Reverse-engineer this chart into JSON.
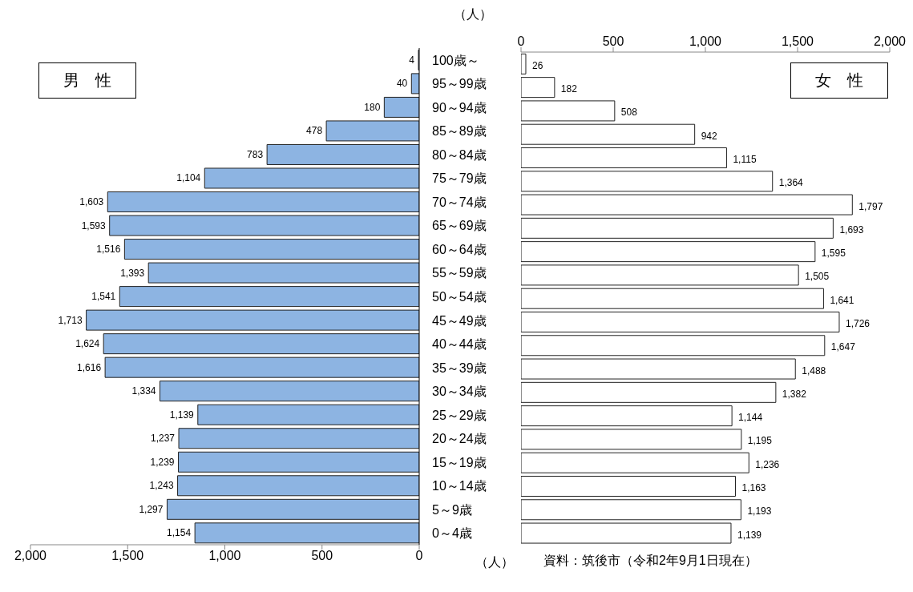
{
  "chart_data": [
    {
      "type": "bar",
      "orientation": "horizontal",
      "title": "男　性",
      "xlabel": "（人）",
      "categories": [
        "100歳～",
        "95～99歳",
        "90～94歳",
        "85～89歳",
        "80～84歳",
        "75～79歳",
        "70～74歳",
        "65～69歳",
        "60～64歳",
        "55～59歳",
        "50～54歳",
        "45～49歳",
        "40～44歳",
        "35～39歳",
        "30～34歳",
        "25～29歳",
        "20～24歳",
        "15～19歳",
        "10～14歳",
        "5～9歳",
        "0～4歳"
      ],
      "values": [
        4,
        40,
        180,
        478,
        783,
        1104,
        1603,
        1593,
        1516,
        1393,
        1541,
        1713,
        1624,
        1616,
        1334,
        1139,
        1237,
        1239,
        1243,
        1297,
        1154
      ],
      "value_labels": [
        "4",
        "40",
        "180",
        "478",
        "783",
        "1,104",
        "1,603",
        "1,593",
        "1,516",
        "1,393",
        "1,541",
        "1,713",
        "1,624",
        "1,616",
        "1,334",
        "1,139",
        "1,237",
        "1,239",
        "1,243",
        "1,297",
        "1,154"
      ],
      "color": "#8db4e2",
      "xlim": [
        2000,
        0
      ],
      "xticks": [
        {
          "value": 2000,
          "label": "2,000"
        },
        {
          "value": 1500,
          "label": "1,500"
        },
        {
          "value": 1000,
          "label": "1,000"
        },
        {
          "value": 500,
          "label": "500"
        },
        {
          "value": 0,
          "label": "0"
        }
      ]
    },
    {
      "type": "bar",
      "orientation": "horizontal",
      "title": "女　性",
      "xlabel": "（人）",
      "categories": [
        null,
        null,
        null,
        null,
        null,
        null,
        null,
        null,
        null,
        null,
        null,
        null,
        null,
        null,
        null,
        null,
        null,
        null,
        null,
        null,
        null
      ],
      "values": [
        26,
        182,
        508,
        942,
        1115,
        1364,
        1797,
        1693,
        1595,
        1505,
        1641,
        1726,
        1647,
        1488,
        1382,
        1144,
        1195,
        1236,
        1163,
        1193,
        1139
      ],
      "value_labels": [
        "26",
        "182",
        "508",
        "942",
        "1,115",
        "1,364",
        "1,797",
        "1,693",
        "1,595",
        "1,505",
        "1,641",
        "1,726",
        "1,647",
        "1,488",
        "1,382",
        "1,144",
        "1,195",
        "1,236",
        "1,163",
        "1,193",
        "1,139"
      ],
      "color": "#ffffff",
      "xlim": [
        0,
        2000
      ],
      "xticks": [
        {
          "value": 0,
          "label": "0"
        },
        {
          "value": 500,
          "label": "500"
        },
        {
          "value": 1000,
          "label": "1,000"
        },
        {
          "value": 1500,
          "label": "1,500"
        },
        {
          "value": 2000,
          "label": "2,000"
        }
      ],
      "tick_labels": "x",
      "annotations": [
        "資料：筑後市（令和2年9月1日現在）"
      ]
    }
  ]
}
